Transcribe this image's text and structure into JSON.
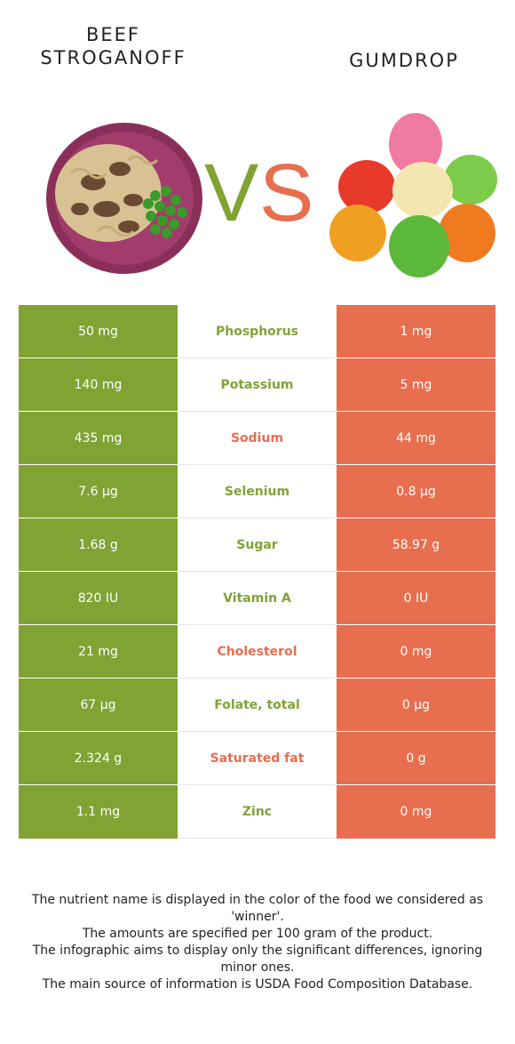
{
  "header": {
    "left_title": "BEEF\nSTROGANOFF",
    "right_title": "GUMDROP",
    "vs_label": "VS"
  },
  "colors": {
    "left_winner": "#80a334",
    "right_winner": "#e76e4e",
    "vs_v": "#80a334",
    "vs_s": "#e76e4e"
  },
  "images": {
    "left": "beef-stroganoff-plate",
    "right": "gumdrop-candies"
  },
  "rows": [
    {
      "left": "50 mg",
      "nutrient": "Phosphorus",
      "right": "1 mg",
      "winner": "left"
    },
    {
      "left": "140 mg",
      "nutrient": "Potassium",
      "right": "5 mg",
      "winner": "left"
    },
    {
      "left": "435 mg",
      "nutrient": "Sodium",
      "right": "44 mg",
      "winner": "right"
    },
    {
      "left": "7.6 µg",
      "nutrient": "Selenium",
      "right": "0.8 µg",
      "winner": "left"
    },
    {
      "left": "1.68 g",
      "nutrient": "Sugar",
      "right": "58.97 g",
      "winner": "left"
    },
    {
      "left": "820 IU",
      "nutrient": "Vitamin A",
      "right": "0 IU",
      "winner": "left"
    },
    {
      "left": "21 mg",
      "nutrient": "Cholesterol",
      "right": "0 mg",
      "winner": "right"
    },
    {
      "left": "67 µg",
      "nutrient": "Folate, total",
      "right": "0 µg",
      "winner": "left"
    },
    {
      "left": "2.324 g",
      "nutrient": "Saturated fat",
      "right": "0 g",
      "winner": "right"
    },
    {
      "left": "1.1 mg",
      "nutrient": "Zinc",
      "right": "0 mg",
      "winner": "left"
    }
  ],
  "footer": [
    "The nutrient name is displayed in the color of the food we considered as 'winner'.",
    "The amounts are specified per 100 gram of the product.",
    "The infographic aims to display only the significant differences, ignoring minor ones.",
    "The main source of information is USDA Food Composition Database."
  ]
}
